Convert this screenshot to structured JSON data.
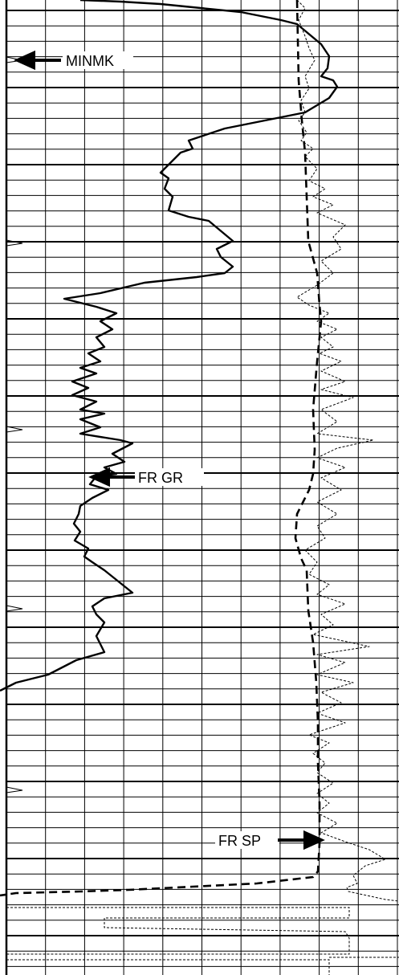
{
  "chart_data": {
    "type": "line",
    "title": "",
    "xlabel": "",
    "ylabel": "",
    "grid": true,
    "grid_major_vertical_count": 10,
    "depth_range": [
      0,
      1214
    ],
    "series": [
      {
        "key": "gr",
        "style": "solid",
        "x_range": [
          0,
          497
        ],
        "points": [
          [
            100,
            0
          ],
          [
            150,
            2
          ],
          [
            200,
            5
          ],
          [
            250,
            10
          ],
          [
            300,
            15
          ],
          [
            350,
            25
          ],
          [
            370,
            30
          ],
          [
            400,
            55
          ],
          [
            410,
            70
          ],
          [
            408,
            85
          ],
          [
            400,
            95
          ],
          [
            415,
            100
          ],
          [
            420,
            108
          ],
          [
            410,
            122
          ],
          [
            380,
            140
          ],
          [
            330,
            150
          ],
          [
            280,
            160
          ],
          [
            250,
            170
          ],
          [
            235,
            175
          ],
          [
            240,
            185
          ],
          [
            225,
            190
          ],
          [
            210,
            205
          ],
          [
            200,
            215
          ],
          [
            210,
            222
          ],
          [
            205,
            235
          ],
          [
            215,
            245
          ],
          [
            210,
            262
          ],
          [
            235,
            270
          ],
          [
            260,
            275
          ],
          [
            290,
            300
          ],
          [
            270,
            310
          ],
          [
            275,
            320
          ],
          [
            290,
            332
          ],
          [
            280,
            340
          ],
          [
            245,
            345
          ],
          [
            180,
            352
          ],
          [
            125,
            365
          ],
          [
            80,
            372
          ],
          [
            120,
            382
          ],
          [
            145,
            390
          ],
          [
            125,
            400
          ],
          [
            140,
            410
          ],
          [
            120,
            420
          ],
          [
            130,
            432
          ],
          [
            110,
            440
          ],
          [
            125,
            450
          ],
          [
            100,
            458
          ],
          [
            120,
            465
          ],
          [
            90,
            475
          ],
          [
            110,
            483
          ],
          [
            90,
            492
          ],
          [
            120,
            500
          ],
          [
            100,
            510
          ],
          [
            130,
            515
          ],
          [
            100,
            522
          ],
          [
            125,
            532
          ],
          [
            100,
            540
          ],
          [
            150,
            548
          ],
          [
            165,
            552
          ],
          [
            140,
            565
          ],
          [
            155,
            575
          ],
          [
            130,
            582
          ],
          [
            145,
            590
          ],
          [
            120,
            593
          ],
          [
            112,
            603
          ],
          [
            135,
            610
          ],
          [
            115,
            620
          ],
          [
            100,
            630
          ],
          [
            98,
            640
          ],
          [
            92,
            652
          ],
          [
            100,
            662
          ],
          [
            93,
            673
          ],
          [
            110,
            683
          ],
          [
            105,
            693
          ],
          [
            115,
            700
          ],
          [
            130,
            710
          ],
          [
            165,
            738
          ],
          [
            130,
            745
          ],
          [
            115,
            755
          ],
          [
            120,
            765
          ],
          [
            130,
            775
          ],
          [
            120,
            792
          ],
          [
            125,
            802
          ],
          [
            130,
            812
          ],
          [
            95,
            822
          ],
          [
            60,
            840
          ],
          [
            20,
            850
          ],
          [
            0,
            860
          ]
        ]
      },
      {
        "key": "sp",
        "style": "dashed",
        "x_range": [
          0,
          497
        ],
        "points": [
          [
            370,
            0
          ],
          [
            372,
            100
          ],
          [
            376,
            150
          ],
          [
            380,
            190
          ],
          [
            384,
            300
          ],
          [
            395,
            340
          ],
          [
            398,
            380
          ],
          [
            400,
            400
          ],
          [
            395,
            450
          ],
          [
            390,
            510
          ],
          [
            392,
            560
          ],
          [
            390,
            590
          ],
          [
            385,
            610
          ],
          [
            370,
            640
          ],
          [
            368,
            670
          ],
          [
            375,
            695
          ],
          [
            382,
            710
          ],
          [
            384,
            760
          ],
          [
            390,
            800
          ],
          [
            394,
            850
          ],
          [
            396,
            900
          ],
          [
            396,
            950
          ],
          [
            398,
            1000
          ],
          [
            398,
            1050
          ],
          [
            396,
            1085
          ],
          [
            390,
            1092
          ],
          [
            320,
            1100
          ],
          [
            240,
            1104
          ],
          [
            160,
            1108
          ],
          [
            100,
            1110
          ],
          [
            20,
            1112
          ],
          [
            0,
            1115
          ]
        ]
      },
      {
        "key": "res",
        "style": "dotted",
        "x_range": [
          0,
          497
        ],
        "points": [
          [
            370,
            0
          ],
          [
            380,
            10
          ],
          [
            372,
            25
          ],
          [
            380,
            45
          ],
          [
            385,
            60
          ],
          [
            392,
            75
          ],
          [
            380,
            95
          ],
          [
            385,
            110
          ],
          [
            375,
            125
          ],
          [
            380,
            140
          ],
          [
            372,
            150
          ],
          [
            382,
            165
          ],
          [
            375,
            175
          ],
          [
            390,
            185
          ],
          [
            380,
            195
          ],
          [
            395,
            210
          ],
          [
            385,
            225
          ],
          [
            405,
            235
          ],
          [
            390,
            245
          ],
          [
            415,
            255
          ],
          [
            395,
            265
          ],
          [
            430,
            280
          ],
          [
            415,
            295
          ],
          [
            425,
            310
          ],
          [
            400,
            325
          ],
          [
            415,
            340
          ],
          [
            395,
            355
          ],
          [
            370,
            370
          ],
          [
            385,
            380
          ],
          [
            410,
            390
          ],
          [
            395,
            400
          ],
          [
            420,
            410
          ],
          [
            400,
            420
          ],
          [
            415,
            432
          ],
          [
            398,
            440
          ],
          [
            425,
            450
          ],
          [
            400,
            462
          ],
          [
            430,
            475
          ],
          [
            400,
            485
          ],
          [
            440,
            495
          ],
          [
            400,
            510
          ],
          [
            420,
            525
          ],
          [
            395,
            540
          ],
          [
            465,
            548
          ],
          [
            420,
            558
          ],
          [
            395,
            570
          ],
          [
            430,
            582
          ],
          [
            400,
            595
          ],
          [
            425,
            610
          ],
          [
            395,
            625
          ],
          [
            420,
            640
          ],
          [
            395,
            655
          ],
          [
            405,
            670
          ],
          [
            380,
            685
          ],
          [
            395,
            700
          ],
          [
            385,
            715
          ],
          [
            410,
            728
          ],
          [
            395,
            740
          ],
          [
            430,
            752
          ],
          [
            400,
            765
          ],
          [
            415,
            778
          ],
          [
            390,
            790
          ],
          [
            460,
            805
          ],
          [
            395,
            815
          ],
          [
            430,
            825
          ],
          [
            395,
            840
          ],
          [
            440,
            850
          ],
          [
            400,
            862
          ],
          [
            425,
            875
          ],
          [
            395,
            888
          ],
          [
            430,
            900
          ],
          [
            385,
            915
          ],
          [
            410,
            925
          ],
          [
            390,
            938
          ],
          [
            405,
            950
          ],
          [
            395,
            962
          ],
          [
            415,
            975
          ],
          [
            395,
            988
          ],
          [
            410,
            1000
          ],
          [
            395,
            1012
          ],
          [
            420,
            1025
          ],
          [
            400,
            1037
          ],
          [
            430,
            1048
          ],
          [
            460,
            1058
          ],
          [
            480,
            1070
          ],
          [
            455,
            1078
          ],
          [
            440,
            1090
          ],
          [
            445,
            1100
          ],
          [
            432,
            1105
          ],
          [
            434,
            1110
          ],
          [
            480,
            1120
          ],
          [
            497,
            1122
          ]
        ]
      }
    ],
    "annotations": [
      {
        "text": "MINMK",
        "target": "gr"
      },
      {
        "text": "FR GR",
        "target": "gr"
      },
      {
        "text": "FR SP",
        "target": "sp"
      }
    ]
  },
  "colors": {
    "background": "#ffffff",
    "grid": "#000000",
    "curves": "#000000"
  }
}
